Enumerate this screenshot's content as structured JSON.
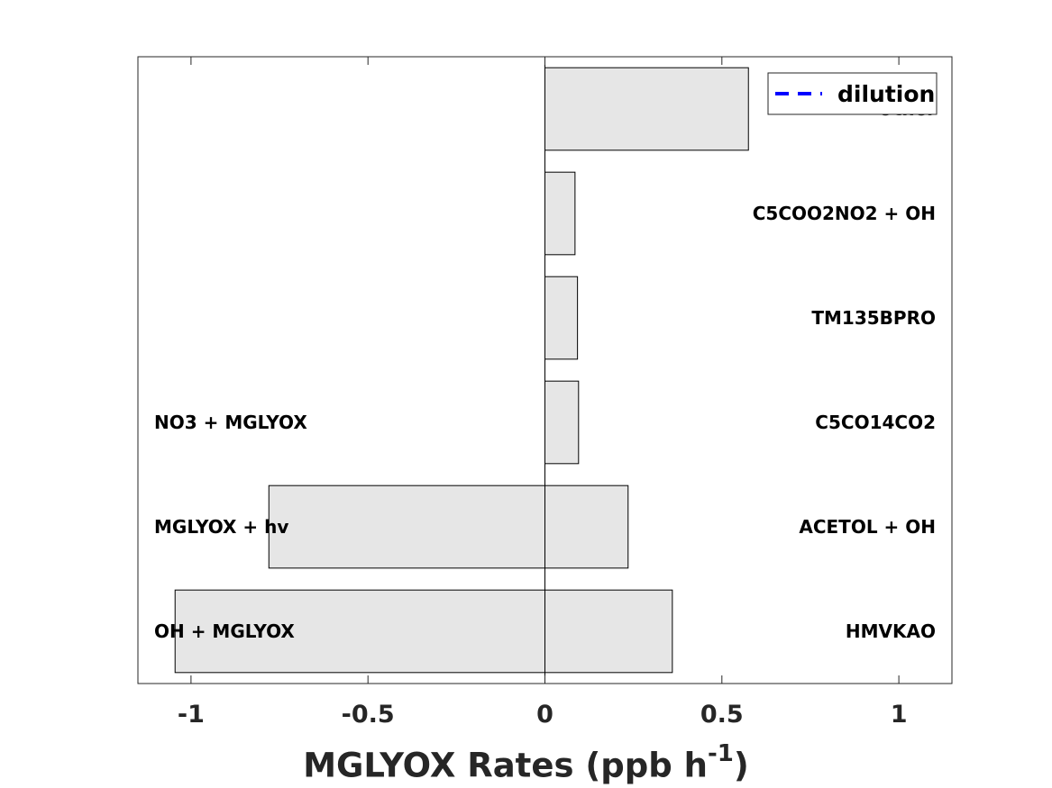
{
  "chart_data": {
    "type": "bar",
    "orientation": "horizontal",
    "stacked_diverging": true,
    "xlabel": {
      "prefix": "MGLYOX Rates (ppb h",
      "superscript": "-1",
      "suffix": ")"
    },
    "xlim": [
      -1.15,
      1.15
    ],
    "xticks": [
      {
        "value": -1,
        "label": "-1"
      },
      {
        "value": -0.5,
        "label": "-0.5"
      },
      {
        "value": 0,
        "label": "0"
      },
      {
        "value": 0.5,
        "label": "0.5"
      },
      {
        "value": 1,
        "label": "1"
      }
    ],
    "rows": [
      {
        "positive_label": "HMVKAO",
        "positive_value": 0.36,
        "negative_label": "OH + MGLYOX",
        "negative_value": -1.045
      },
      {
        "positive_label": "ACETOL + OH",
        "positive_value": 0.235,
        "negative_label": "MGLYOX + hv",
        "negative_value": -0.78
      },
      {
        "positive_label": "C5CO14CO2",
        "positive_value": 0.095,
        "negative_label": "NO3 + MGLYOX",
        "negative_value": 0
      },
      {
        "positive_label": "TM135BPRO",
        "positive_value": 0.092,
        "negative_label": "",
        "negative_value": 0
      },
      {
        "positive_label": "C5COO2NO2 + OH",
        "positive_value": 0.085,
        "negative_label": "",
        "negative_value": 0
      },
      {
        "positive_label": "Other",
        "positive_value": 0.575,
        "negative_label": "",
        "negative_value": 0
      }
    ],
    "legend": {
      "placement": "top-right",
      "entries": [
        {
          "label": "dilution",
          "style": "dashed",
          "color": "#0000ff"
        }
      ]
    },
    "bar_color": "#e6e6e6",
    "grid": false
  }
}
